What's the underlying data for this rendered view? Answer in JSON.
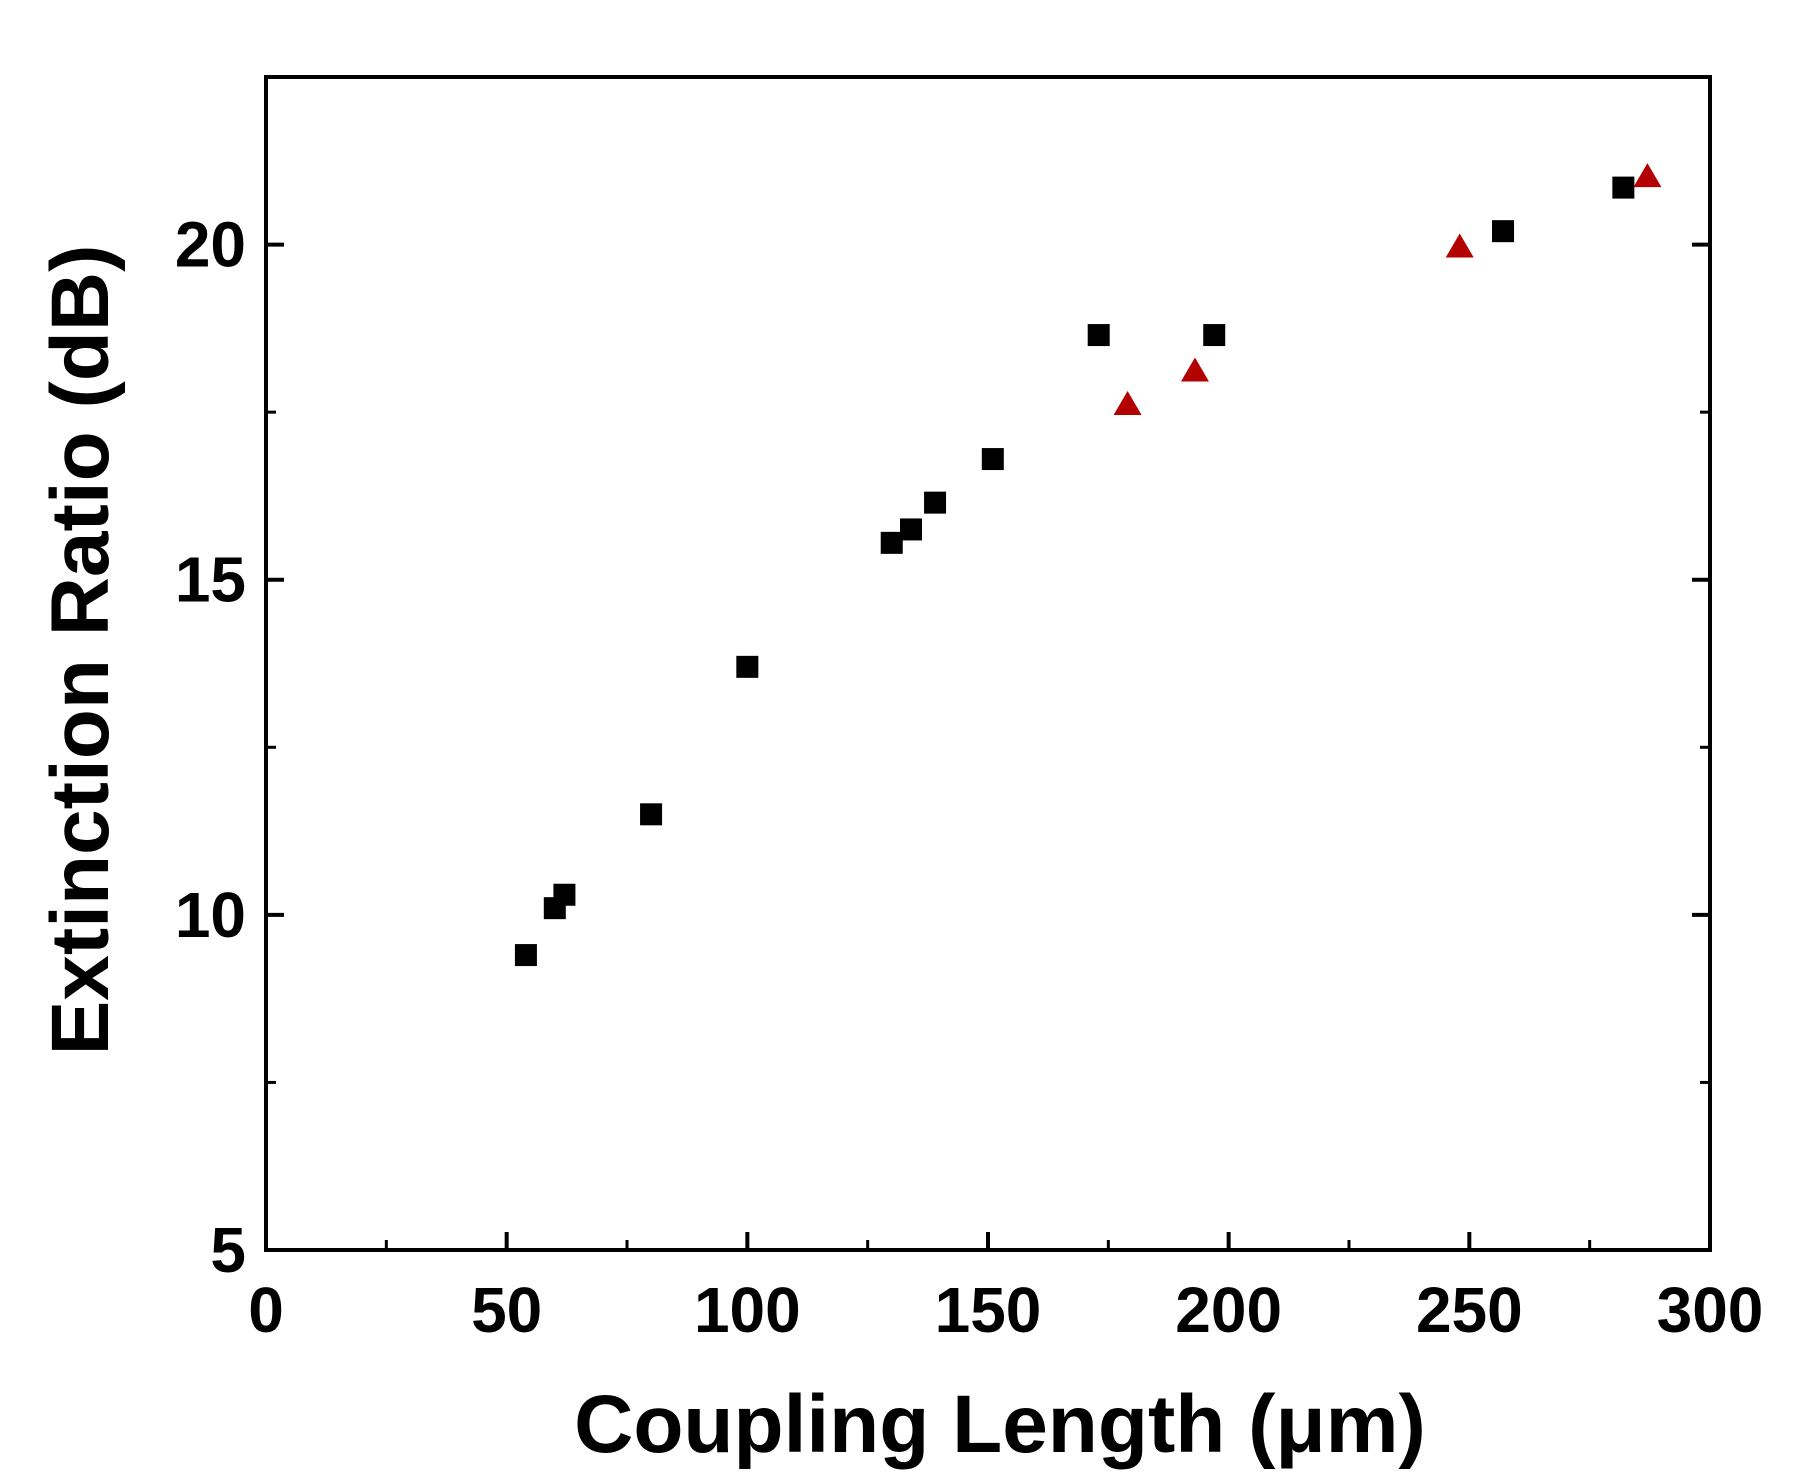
{
  "chart_data": {
    "type": "scatter",
    "title": "",
    "xlabel": "Coupling Length (μm)",
    "ylabel": "Extinction Ratio (dB)",
    "xlim": [
      0,
      300
    ],
    "ylim": [
      5,
      22.5
    ],
    "xticks": [
      0,
      50,
      100,
      150,
      200,
      250,
      300
    ],
    "xtick_labels": [
      "0",
      "50",
      "100",
      "150",
      "200",
      "250",
      "300"
    ],
    "yticks": [
      5,
      10,
      15,
      20
    ],
    "ytick_labels": [
      "5",
      "10",
      "15",
      "20"
    ],
    "y_minor_ticks": [
      7.5,
      12.5,
      17.5
    ],
    "grid": false,
    "legend": "none",
    "series": [
      {
        "marker": "square",
        "color": "#000000",
        "points": [
          {
            "x": 54,
            "y": 9.4
          },
          {
            "x": 60,
            "y": 10.1
          },
          {
            "x": 62,
            "y": 10.3
          },
          {
            "x": 80,
            "y": 11.5
          },
          {
            "x": 100,
            "y": 13.7
          },
          {
            "x": 130,
            "y": 15.55
          },
          {
            "x": 134,
            "y": 15.75
          },
          {
            "x": 139,
            "y": 16.15
          },
          {
            "x": 151,
            "y": 16.8
          },
          {
            "x": 173,
            "y": 18.65
          },
          {
            "x": 197,
            "y": 18.65
          },
          {
            "x": 257,
            "y": 20.2
          },
          {
            "x": 282,
            "y": 20.85
          }
        ]
      },
      {
        "marker": "triangle",
        "color": "#b30000",
        "points": [
          {
            "x": 179,
            "y": 17.6
          },
          {
            "x": 193,
            "y": 18.1
          },
          {
            "x": 248,
            "y": 19.95
          },
          {
            "x": 287,
            "y": 21.0
          }
        ]
      }
    ]
  }
}
